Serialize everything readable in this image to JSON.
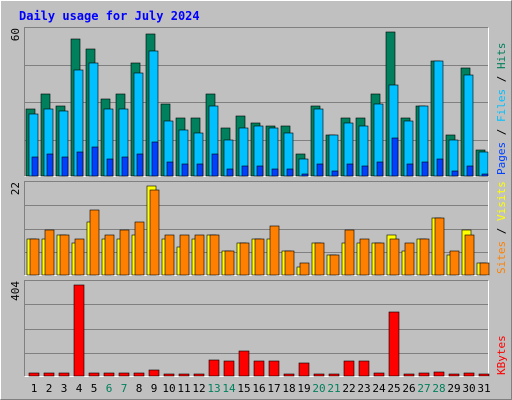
{
  "title": "Daily usage for July 2024",
  "colors": {
    "background": "#c0c0c0",
    "title": "#0000ff",
    "hits": "#00805c",
    "files": "#00c0ff",
    "pages": "#0040ff",
    "visits": "#ffff00",
    "sites": "#ff8000",
    "kbytes": "#ff0000",
    "weekend_label": "#00805c",
    "weekday_label": "#000000"
  },
  "chart_data": [
    {
      "type": "bar",
      "panel": "hits-files-pages",
      "y_tick_label": "60",
      "ylim": [
        0,
        60
      ],
      "legend_right": [
        {
          "name": "Hits",
          "color_key": "hits"
        },
        {
          "name": "Files",
          "color_key": "files"
        },
        {
          "name": "Pages",
          "color_key": "pages"
        }
      ],
      "legend_separator": " / ",
      "categories": [
        "1",
        "2",
        "3",
        "4",
        "5",
        "6",
        "7",
        "8",
        "9",
        "10",
        "11",
        "12",
        "13",
        "14",
        "15",
        "16",
        "17",
        "18",
        "19",
        "20",
        "21",
        "22",
        "23",
        "24",
        "25",
        "26",
        "27",
        "28",
        "29",
        "30",
        "31"
      ],
      "series": [
        {
          "name": "Hits",
          "values": [
            28,
            34,
            29,
            57,
            53,
            32,
            34,
            47,
            59,
            30,
            24,
            24,
            34,
            20,
            25,
            22,
            21,
            21,
            9,
            29,
            17,
            24,
            24,
            34,
            60,
            24,
            29,
            48,
            17,
            45,
            11
          ]
        },
        {
          "name": "Files",
          "values": [
            26,
            28,
            27,
            44,
            47,
            28,
            28,
            43,
            52,
            23,
            19,
            18,
            29,
            15,
            20,
            21,
            20,
            18,
            7,
            28,
            17,
            22,
            21,
            30,
            38,
            23,
            29,
            48,
            15,
            42,
            10
          ]
        },
        {
          "name": "Pages",
          "values": [
            8,
            9,
            8,
            10,
            12,
            7,
            8,
            9,
            14,
            6,
            5,
            5,
            9,
            3,
            4,
            4,
            3,
            3,
            1,
            5,
            2,
            5,
            4,
            6,
            16,
            5,
            6,
            7,
            2,
            4,
            1
          ]
        }
      ]
    },
    {
      "type": "bar",
      "panel": "visits-sites",
      "y_tick_label": "22",
      "ylim": [
        0,
        22
      ],
      "legend_right": [
        {
          "name": "Visits",
          "color_key": "visits"
        },
        {
          "name": "Sites",
          "color_key": "sites"
        }
      ],
      "legend_separator": " / ",
      "categories": [
        "1",
        "2",
        "3",
        "4",
        "5",
        "6",
        "7",
        "8",
        "9",
        "10",
        "11",
        "12",
        "13",
        "14",
        "15",
        "16",
        "17",
        "18",
        "19",
        "20",
        "21",
        "22",
        "23",
        "24",
        "25",
        "26",
        "27",
        "28",
        "29",
        "30",
        "31"
      ],
      "series": [
        {
          "name": "Visits",
          "values": [
            9,
            9,
            10,
            8,
            13,
            9,
            9,
            10,
            22,
            9,
            7,
            9,
            10,
            6,
            8,
            9,
            9,
            6,
            2,
            8,
            5,
            8,
            8,
            8,
            10,
            6,
            9,
            14,
            5,
            11,
            3
          ]
        },
        {
          "name": "Sites",
          "values": [
            9,
            11,
            10,
            9,
            16,
            10,
            11,
            13,
            21,
            10,
            10,
            10,
            10,
            6,
            8,
            9,
            12,
            6,
            3,
            8,
            5,
            11,
            9,
            8,
            9,
            8,
            9,
            14,
            6,
            10,
            3
          ]
        }
      ]
    },
    {
      "type": "bar",
      "panel": "kbytes",
      "y_tick_label": "404",
      "ylim": [
        0,
        404
      ],
      "legend_right": [
        {
          "name": "KBytes",
          "color_key": "kbytes"
        }
      ],
      "legend_separator": " / ",
      "categories": [
        "1",
        "2",
        "3",
        "4",
        "5",
        "6",
        "7",
        "8",
        "9",
        "10",
        "11",
        "12",
        "13",
        "14",
        "15",
        "16",
        "17",
        "18",
        "19",
        "20",
        "21",
        "22",
        "23",
        "24",
        "25",
        "26",
        "27",
        "28",
        "29",
        "30",
        "31"
      ],
      "series": [
        {
          "name": "KBytes",
          "values": [
            12,
            12,
            12,
            404,
            12,
            12,
            12,
            12,
            25,
            10,
            10,
            10,
            72,
            66,
            112,
            66,
            66,
            10,
            58,
            10,
            10,
            66,
            66,
            14,
            286,
            10,
            12,
            16,
            10,
            12,
            10
          ]
        }
      ]
    }
  ],
  "x_labels": {
    "days": [
      "1",
      "2",
      "3",
      "4",
      "5",
      "6",
      "7",
      "8",
      "9",
      "10",
      "11",
      "12",
      "13",
      "14",
      "15",
      "16",
      "17",
      "18",
      "19",
      "20",
      "21",
      "22",
      "23",
      "24",
      "25",
      "26",
      "27",
      "28",
      "29",
      "30",
      "31"
    ],
    "weekend_days": [
      "6",
      "7",
      "13",
      "14",
      "20",
      "21",
      "27",
      "28"
    ]
  }
}
